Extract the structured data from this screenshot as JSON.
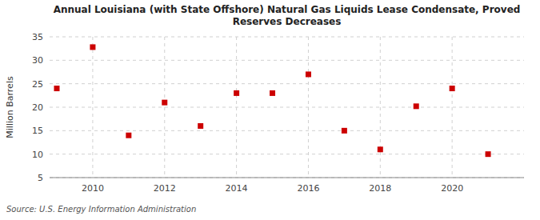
{
  "chart_data": {
    "type": "scatter",
    "title": "Annual Louisiana (with State Offshore) Natural Gas Liquids Lease Condensate, Proved\nReserves Decreases",
    "y_label": "Million Barrels",
    "annotations": [
      "Source: U.S. Energy Information Administration"
    ],
    "x": [
      2009,
      2010,
      2011,
      2012,
      2013,
      2014,
      2015,
      2016,
      2017,
      2018,
      2019,
      2020,
      2021
    ],
    "values": [
      24.0,
      32.8,
      14.0,
      21.0,
      16.0,
      23.0,
      23.0,
      27.0,
      15.0,
      11.0,
      20.2,
      24.0,
      10.0
    ],
    "color": "#cc0000",
    "marker": "square",
    "xlim": [
      2008.8,
      2022.0
    ],
    "ylim": [
      5,
      35
    ],
    "xticks": [
      2010,
      2012,
      2014,
      2016,
      2018,
      2020
    ],
    "yticks": [
      5,
      10,
      15,
      20,
      25,
      30,
      35
    ],
    "grid": true
  }
}
